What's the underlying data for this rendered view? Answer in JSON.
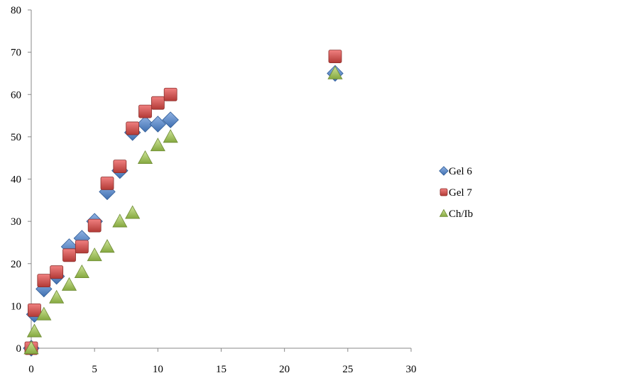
{
  "chart_data": {
    "type": "scatter",
    "title": "",
    "xlabel": "",
    "ylabel": "",
    "xlim": [
      0,
      30
    ],
    "ylim": [
      0,
      80
    ],
    "xticks": [
      0,
      5,
      10,
      15,
      20,
      25,
      30
    ],
    "yticks": [
      0,
      10,
      20,
      30,
      40,
      50,
      60,
      70,
      80
    ],
    "grid": false,
    "legend_position": "right",
    "series": [
      {
        "name": "Gel 6",
        "marker": "diamond",
        "color": "#4f81bd",
        "x": [
          0,
          0.25,
          1,
          2,
          3,
          4,
          5,
          6,
          7,
          8,
          9,
          10,
          11,
          24
        ],
        "y": [
          0,
          8,
          14,
          17,
          24,
          26,
          30,
          37,
          42,
          51,
          53,
          53,
          54,
          65
        ]
      },
      {
        "name": "Gel 7",
        "marker": "square",
        "color": "#c0504d",
        "x": [
          0,
          0.25,
          1,
          2,
          3,
          4,
          5,
          6,
          7,
          8,
          9,
          10,
          11,
          24
        ],
        "y": [
          0,
          9,
          16,
          18,
          22,
          24,
          29,
          39,
          43,
          52,
          56,
          58,
          60,
          69
        ]
      },
      {
        "name": "Ch/Ib",
        "marker": "triangle",
        "color": "#9bbb59",
        "x": [
          0,
          0.25,
          1,
          2,
          3,
          4,
          5,
          6,
          7,
          8,
          9,
          10,
          11,
          24
        ],
        "y": [
          0,
          4,
          8,
          12,
          15,
          18,
          22,
          24,
          30,
          32,
          45,
          48,
          50,
          65
        ]
      }
    ]
  }
}
